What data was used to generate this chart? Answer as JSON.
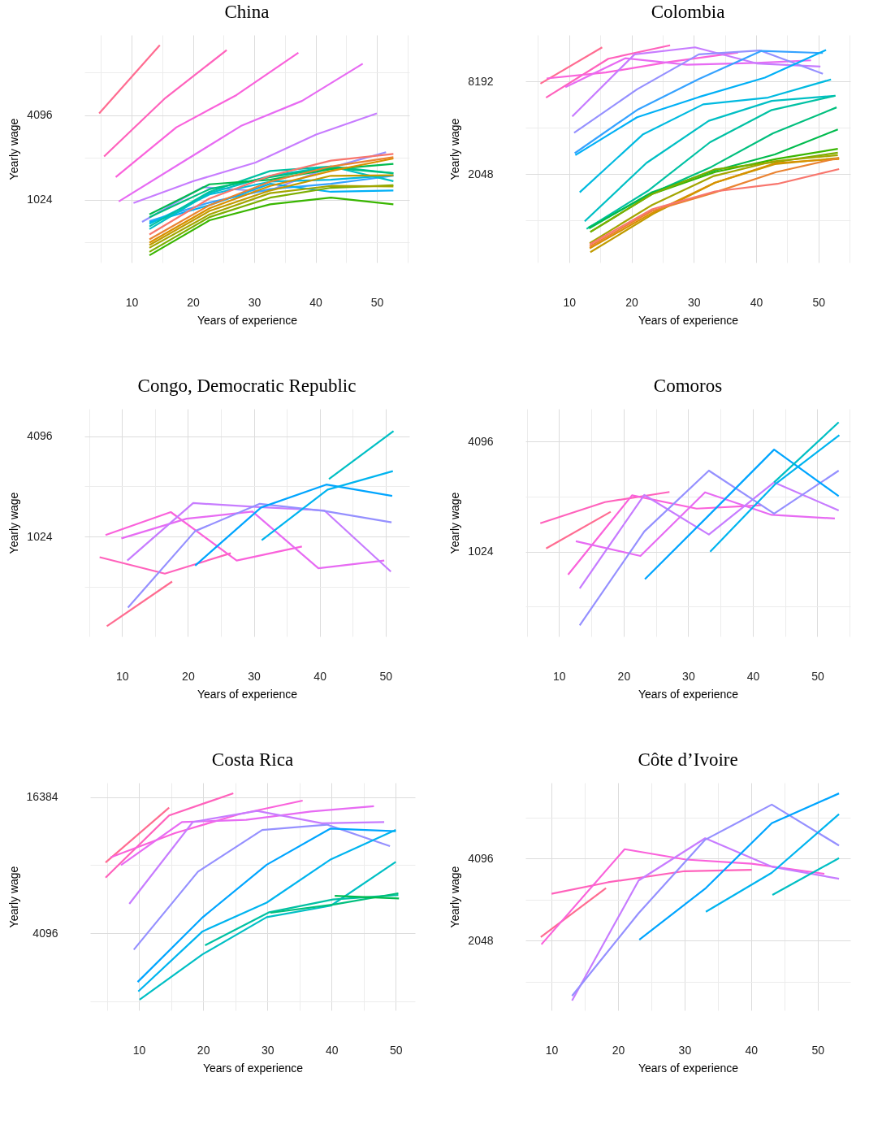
{
  "chart_data": [
    {
      "type": "line",
      "title": "China",
      "xlabel": "Years of experience",
      "ylabel": "Yearly wage",
      "log": "y",
      "grid": true,
      "xlim": [
        2.3,
        55.3
      ],
      "ylim": [
        367,
        15170
      ],
      "xticks": [
        {
          "value": 5,
          "label": null
        },
        10,
        {
          "value": 15,
          "label": null
        },
        20,
        {
          "value": 25,
          "label": null
        },
        30,
        {
          "value": 35,
          "label": null
        },
        40,
        {
          "value": 45,
          "label": null
        },
        50,
        {
          "value": 55,
          "label": null
        }
      ],
      "yticks": [
        {
          "value": 512,
          "label": null
        },
        1024,
        {
          "value": 2048,
          "label": null
        },
        4096,
        {
          "value": 8192,
          "label": null
        }
      ],
      "series": [
        {
          "color": "#ff6c91",
          "x": [
            4.7,
            14.6
          ],
          "values": [
            4210,
            12850
          ]
        },
        {
          "color": "#ff62bc",
          "x": [
            5.5,
            15.5,
            25.5
          ],
          "values": [
            2080,
            5410,
            11840
          ]
        },
        {
          "color": "#fa62db",
          "x": [
            7.4,
            17.3,
            27.1,
            37.2
          ],
          "values": [
            1484,
            3350,
            5680,
            11340
          ]
        },
        {
          "color": "#e76bf3",
          "x": [
            7.9,
            17.9,
            27.8,
            37.8,
            47.7
          ],
          "values": [
            996,
            1850,
            3420,
            5160,
            9480
          ]
        },
        {
          "color": "#c77cff",
          "x": [
            10.3,
            20.1,
            30.2,
            40.1,
            50
          ],
          "values": [
            972,
            1390,
            1884,
            2980,
            4210
          ]
        },
        {
          "color": "#9590ff",
          "x": [
            11.7,
            21.6,
            32,
            41.6,
            51.5
          ],
          "values": [
            714,
            1260,
            1170,
            1690,
            2230
          ]
        },
        {
          "color": "#35a2ff",
          "x": [
            12.9,
            22.7,
            32.6,
            42.5,
            52.7
          ],
          "values": [
            723,
            980,
            1219,
            1330,
            1516
          ]
        },
        {
          "color": "#00b0f6",
          "x": [
            12.9,
            22.7,
            32.6,
            42.5,
            52.7
          ],
          "values": [
            707,
            938,
            1330,
            1167,
            1193
          ]
        },
        {
          "color": "#00bae0",
          "x": [
            12.9,
            22.7,
            32.6,
            42.5,
            52.7
          ],
          "values": [
            691,
            1117,
            1378,
            1420,
            1529
          ]
        },
        {
          "color": "#00bfc4",
          "x": [
            12.9,
            22.7,
            32.6,
            42.5,
            52.7
          ],
          "values": [
            634,
            1142,
            1516,
            1766,
            1389
          ]
        },
        {
          "color": "#00c1a3",
          "x": [
            12.9,
            22.7,
            32.6,
            42.5,
            52.7
          ],
          "values": [
            662,
            1167,
            1640,
            1766,
            1583
          ]
        },
        {
          "color": "#00bf7d",
          "x": [
            12.9,
            22.7,
            32.6,
            42.5,
            52.7
          ],
          "values": [
            771,
            1219,
            1484,
            1728,
            1583
          ]
        },
        {
          "color": "#00bb4e",
          "x": [
            12.9,
            22.7,
            32.6,
            42.5,
            52.7
          ],
          "values": [
            806,
            1319,
            1420,
            1690,
            1844
          ]
        },
        {
          "color": "#39b600",
          "x": [
            12.9,
            22.7,
            32.6,
            42.5,
            52.7
          ],
          "values": [
            413,
            732,
            951,
            1060,
            951
          ]
        },
        {
          "color": "#7cae00",
          "x": [
            12.9,
            22.7,
            32.6,
            42.5,
            52.7
          ],
          "values": [
            437,
            771,
            1060,
            1246,
            1301
          ]
        },
        {
          "color": "#a3a500",
          "x": [
            12.9,
            22.7,
            32.6,
            42.5,
            52.7
          ],
          "values": [
            467,
            806,
            1142,
            1285,
            1273
          ]
        },
        {
          "color": "#c09b00",
          "x": [
            12.9,
            22.7,
            32.6,
            42.5,
            52.7
          ],
          "values": [
            488,
            853,
            1193,
            1516,
            1529
          ]
        },
        {
          "color": "#d89000",
          "x": [
            12.9,
            22.7,
            32.6,
            42.5,
            52.7
          ],
          "values": [
            508,
            891,
            1285,
            1640,
            2012
          ]
        },
        {
          "color": "#ea8331",
          "x": [
            12.9,
            22.7,
            32.6,
            42.5,
            52.7
          ],
          "values": [
            536,
            938,
            1378,
            1766,
            2057
          ]
        },
        {
          "color": "#f8766d",
          "x": [
            12.9,
            22.7,
            32.6,
            42.5,
            52.7
          ],
          "values": [
            580,
            1046,
            1516,
            1944,
            2168
          ]
        }
      ]
    },
    {
      "type": "line",
      "title": "Colombia",
      "xlabel": "Years of experience",
      "ylabel": "Yearly wage",
      "log": "y",
      "grid": true,
      "xlim": [
        3,
        55.1
      ],
      "ylim": [
        545,
        16450
      ],
      "xticks": [
        {
          "value": 5,
          "label": null
        },
        10,
        {
          "value": 15,
          "label": null
        },
        20,
        {
          "value": 25,
          "label": null
        },
        30,
        {
          "value": 35,
          "label": null
        },
        40,
        {
          "value": 45,
          "label": null
        },
        50,
        {
          "value": 55,
          "label": null
        }
      ],
      "yticks": [
        {
          "value": 1024,
          "label": null
        },
        2048,
        {
          "value": 4096,
          "label": null
        },
        8192
      ],
      "series": [
        {
          "color": "#ff6c91",
          "x": [
            5.4,
            15.3
          ],
          "values": [
            7940,
            13660
          ]
        },
        {
          "color": "#ff62bc",
          "x": [
            6.3,
            16.3,
            26.2
          ],
          "values": [
            6440,
            11520,
            14090
          ]
        },
        {
          "color": "#fa62db",
          "x": [
            6.4,
            15.9,
            25.9,
            37.1
          ],
          "values": [
            8580,
            9380,
            10950,
            12640
          ]
        },
        {
          "color": "#e76bf3",
          "x": [
            9.4,
            19,
            28.9,
            40.1,
            48.8
          ],
          "values": [
            7520,
            11610,
            10530,
            10820,
            11250
          ]
        },
        {
          "color": "#c77cff",
          "x": [
            10.5,
            20.5,
            30.2,
            40.1,
            50.3
          ],
          "values": [
            4860,
            12300,
            13660,
            10740,
            10250
          ]
        },
        {
          "color": "#9590ff",
          "x": [
            10.8,
            20.9,
            30.8,
            40.6,
            50.7
          ],
          "values": [
            3800,
            7290,
            12300,
            13040,
            9200
          ]
        },
        {
          "color": "#35a2ff",
          "x": [
            10.9,
            20.9,
            30.8,
            40.8,
            50.7
          ],
          "values": [
            2800,
            5350,
            8510,
            12940,
            12550
          ]
        },
        {
          "color": "#00b0f6",
          "x": [
            11,
            20.9,
            30.8,
            41.4,
            51.2
          ],
          "values": [
            2720,
            4800,
            6490,
            8680,
            13140
          ]
        },
        {
          "color": "#00bae0",
          "x": [
            11.7,
            21.8,
            31.5,
            41.9,
            52
          ],
          "values": [
            1560,
            3700,
            5820,
            6440,
            8450
          ]
        },
        {
          "color": "#00bfc4",
          "x": [
            12.5,
            22.4,
            32.4,
            42.5,
            52.7
          ],
          "values": [
            1010,
            2420,
            4550,
            6130,
            6620
          ]
        },
        {
          "color": "#00c1a3",
          "x": [
            12.8,
            22.8,
            32.6,
            42.5,
            52.7
          ],
          "values": [
            902,
            1610,
            3300,
            5350,
            6620
          ]
        },
        {
          "color": "#00bf7d",
          "x": [
            13.1,
            23,
            32.8,
            42.7,
            52.9
          ],
          "values": [
            919,
            1520,
            2280,
            3770,
            5560
          ]
        },
        {
          "color": "#00bb4e",
          "x": [
            13.2,
            23.3,
            33.2,
            43,
            53.1
          ],
          "values": [
            909,
            1560,
            2150,
            2750,
            4000
          ]
        },
        {
          "color": "#39b600",
          "x": [
            13.4,
            23.3,
            33.4,
            43.2,
            53.1
          ],
          "values": [
            861,
            1520,
            2110,
            2570,
            2990
          ]
        },
        {
          "color": "#7cae00",
          "x": [
            13.4,
            23.3,
            33.4,
            43.2,
            53.1
          ],
          "values": [
            861,
            1520,
            2200,
            2460,
            2820
          ]
        },
        {
          "color": "#a3a500",
          "x": [
            13.3,
            23.3,
            33.2,
            42.7,
            53.1
          ],
          "values": [
            729,
            1290,
            1990,
            2480,
            2720
          ]
        },
        {
          "color": "#c09b00",
          "x": [
            13.4,
            23.5,
            33.4,
            43,
            53.3
          ],
          "values": [
            636,
            1130,
            1800,
            2380,
            2610
          ]
        },
        {
          "color": "#d89000",
          "x": [
            13.3,
            23.4,
            33.4,
            43.2,
            53.3
          ],
          "values": [
            674,
            1150,
            1800,
            2420,
            2570
          ]
        },
        {
          "color": "#ea8331",
          "x": [
            13.3,
            23.3,
            33.2,
            43.2,
            53.3
          ],
          "values": [
            693,
            1180,
            1550,
            2110,
            2610
          ]
        },
        {
          "color": "#f8766d",
          "x": [
            13.3,
            23.3,
            33.4,
            43.4,
            53.3
          ],
          "values": [
            715,
            1210,
            1580,
            1770,
            2210
          ]
        }
      ]
    },
    {
      "type": "line",
      "title": "Congo, Democratic Republic",
      "xlabel": "Years of experience",
      "ylabel": "Yearly wage",
      "log": "y",
      "grid": true,
      "xlim": [
        4.3,
        53.6
      ],
      "ylim": [
        257,
        5990
      ],
      "xticks": [
        {
          "value": 5,
          "label": null
        },
        10,
        {
          "value": 15,
          "label": null
        },
        20,
        {
          "value": 25,
          "label": null
        },
        30,
        {
          "value": 35,
          "label": null
        },
        40,
        {
          "value": 45,
          "label": null
        },
        50
      ],
      "yticks": [
        {
          "value": 512,
          "label": null
        },
        1024,
        {
          "value": 2048,
          "label": null
        },
        4096
      ],
      "series": [
        {
          "color": "#ff6c91",
          "x": [
            7.7,
            17.6
          ],
          "values": [
            296,
            549
          ]
        },
        {
          "color": "#ff62bc",
          "x": [
            6.6,
            16.5,
            26.5
          ],
          "values": [
            769,
            613,
            813
          ]
        },
        {
          "color": "#fa62db",
          "x": [
            7.5,
            17.4,
            27.4,
            37.3
          ],
          "values": [
            1046,
            1436,
            735,
            892
          ]
        },
        {
          "color": "#e76bf3",
          "x": [
            9.9,
            19.8,
            29.8,
            39.8,
            49.8
          ],
          "values": [
            998,
            1310,
            1446,
            660,
            735
          ]
        },
        {
          "color": "#c77cff",
          "x": [
            10.8,
            20.8,
            30.8,
            40.7,
            50.8
          ],
          "values": [
            735,
            1626,
            1540,
            1469,
            630
          ]
        },
        {
          "color": "#9590ff",
          "x": [
            10.9,
            21.1,
            30.9,
            40.7,
            50.9
          ],
          "values": [
            383,
            1104,
            1610,
            1458,
            1246
          ]
        },
        {
          "color": "#00a5ff",
          "x": [
            21.1,
            31.1,
            41,
            51
          ],
          "values": [
            685,
            1530,
            2100,
            1797
          ]
        },
        {
          "color": "#00b4ef",
          "x": [
            31.2,
            41.2,
            51.1
          ],
          "values": [
            974,
            1960,
            2530
          ]
        },
        {
          "color": "#00bfc4",
          "x": [
            41.4,
            51.2
          ],
          "values": [
            2270,
            4400
          ]
        }
      ]
    },
    {
      "type": "line",
      "title": "Comoros",
      "xlabel": "Years of experience",
      "ylabel": "Yearly wage",
      "log": "y",
      "grid": true,
      "xlim": [
        4.8,
        55.1
      ],
      "ylim": [
        352,
        6180
      ],
      "xticks": [
        {
          "value": 5,
          "label": null
        },
        10,
        {
          "value": 15,
          "label": null
        },
        20,
        {
          "value": 25,
          "label": null
        },
        30,
        {
          "value": 35,
          "label": null
        },
        40,
        {
          "value": 45,
          "label": null
        },
        50,
        {
          "value": 55,
          "label": null
        }
      ],
      "yticks": [
        {
          "value": 512,
          "label": null
        },
        1024,
        {
          "value": 2048,
          "label": null
        },
        4096
      ],
      "series": [
        {
          "color": "#ff6c91",
          "x": [
            8,
            18
          ],
          "values": [
            1065,
            1692
          ]
        },
        {
          "color": "#ff62bc",
          "x": [
            7.1,
            17.1,
            27.1
          ],
          "values": [
            1464,
            1910,
            2170
          ]
        },
        {
          "color": "#fa62db",
          "x": [
            11.4,
            21.3,
            31.3,
            41.3
          ],
          "values": [
            766,
            2080,
            1760,
            1834
          ]
        },
        {
          "color": "#e76bf3",
          "x": [
            12.6,
            22.6,
            32.6,
            42.9,
            52.7
          ],
          "values": [
            1167,
            969,
            2160,
            1626,
            1555
          ]
        },
        {
          "color": "#c77cff",
          "x": [
            13.2,
            23.2,
            33.2,
            43.3,
            53.3
          ],
          "values": [
            645,
            2090,
            1270,
            2450,
            1720
          ]
        },
        {
          "color": "#9590ff",
          "x": [
            13.2,
            23.2,
            33.2,
            43.3,
            53.3
          ],
          "values": [
            405,
            1320,
            2840,
            1654,
            2840
          ]
        },
        {
          "color": "#00a5ff",
          "x": [
            23.3,
            33.3,
            43.3,
            53.3
          ],
          "values": [
            724,
            1632,
            3700,
            2060
          ]
        },
        {
          "color": "#00b4ef",
          "x": [
            33.4,
            43.4,
            53.4
          ],
          "values": [
            1024,
            2380,
            4440
          ]
        },
        {
          "color": "#00bfc4",
          "x": [
            43.3,
            53.3
          ],
          "values": [
            2450,
            5220
          ]
        }
      ]
    },
    {
      "type": "line",
      "title": "Costa Rica",
      "xlabel": "Years of experience",
      "ylabel": "Yearly wage",
      "log": "y",
      "grid": true,
      "xlim": [
        2.4,
        53
      ],
      "ylim": [
        1865,
        18980
      ],
      "xticks": [
        {
          "value": 5,
          "label": null
        },
        10,
        {
          "value": 15,
          "label": null
        },
        20,
        {
          "value": 25,
          "label": null
        },
        30,
        {
          "value": 35,
          "label": null
        },
        40,
        {
          "value": 45,
          "label": null
        },
        50
      ],
      "yticks": [
        {
          "value": 2048,
          "label": null
        },
        4096,
        {
          "value": 8192,
          "label": null
        },
        16384
      ],
      "series": [
        {
          "color": "#ff6c91",
          "x": [
            4.8,
            14.7
          ],
          "values": [
            8420,
            14720
          ]
        },
        {
          "color": "#ff62bc",
          "x": [
            4.8,
            14.7,
            24.7
          ],
          "values": [
            7210,
            13600,
            17040
          ]
        },
        {
          "color": "#fa62db",
          "x": [
            5.6,
            15.6,
            25.6,
            35.5
          ],
          "values": [
            8880,
            11360,
            13770,
            15820
          ]
        },
        {
          "color": "#e76bf3",
          "x": [
            7.2,
            16.7,
            26.7,
            36.8,
            46.6
          ],
          "values": [
            8190,
            12720,
            13000,
            14160,
            14930
          ]
        },
        {
          "color": "#c77cff",
          "x": [
            8.5,
            18.4,
            28.4,
            38.5,
            48.2
          ],
          "values": [
            5520,
            12720,
            14240,
            12550,
            12720
          ]
        },
        {
          "color": "#9590ff",
          "x": [
            9.2,
            19.2,
            29.2,
            39.3,
            49.1
          ],
          "values": [
            3460,
            7670,
            11730,
            12380,
            9950
          ]
        },
        {
          "color": "#00a5ff",
          "x": [
            9.8,
            19.8,
            29.9,
            39.8,
            50
          ],
          "values": [
            2490,
            4780,
            8230,
            11890,
            11590
          ]
        },
        {
          "color": "#00b4ef",
          "x": [
            9.9,
            19.9,
            29.9,
            39.9,
            50
          ],
          "values": [
            2260,
            4170,
            5590,
            8700,
            11730
          ]
        },
        {
          "color": "#00bfc4",
          "x": [
            10.1,
            19.9,
            29.9,
            39.9,
            50
          ],
          "values": [
            2080,
            3300,
            4820,
            5420,
            8470
          ]
        },
        {
          "color": "#00c1a3",
          "x": [
            20.3,
            30.3,
            40.2,
            50.4
          ],
          "values": [
            3620,
            5070,
            5770,
            6040
          ]
        },
        {
          "color": "#00bf7d",
          "x": [
            30.5,
            40.5,
            50.4
          ],
          "values": [
            5040,
            5490,
            6150
          ]
        },
        {
          "color": "#00bb4e",
          "x": [
            40.5,
            50.5
          ],
          "values": [
            5990,
            5830
          ]
        }
      ]
    },
    {
      "type": "line",
      "title": "Côte d’Ivoire",
      "xlabel": "Years of experience",
      "ylabel": "Yearly wage",
      "log": "y",
      "grid": true,
      "xlim": [
        6.1,
        54.9
      ],
      "ylim": [
        1135,
        7770
      ],
      "xticks": [
        10,
        {
          "value": 15,
          "label": null
        },
        20,
        {
          "value": 25,
          "label": null
        },
        30,
        {
          "value": 35,
          "label": null
        },
        40,
        {
          "value": 45,
          "label": null
        },
        50
      ],
      "yticks": [
        {
          "value": 1448,
          "label": null
        },
        2048,
        {
          "value": 2896,
          "label": null
        },
        4096,
        {
          "value": 5793,
          "label": null
        }
      ],
      "series": [
        {
          "color": "#ff6c91",
          "x": [
            8.4,
            18.2
          ],
          "values": [
            2107,
            3190
          ]
        },
        {
          "color": "#ff62bc",
          "x": [
            10,
            18.5,
            30,
            40.1
          ],
          "values": [
            3040,
            3350,
            3680,
            3720
          ]
        },
        {
          "color": "#fa62db",
          "x": [
            8.5,
            21,
            30.2,
            40.1,
            51
          ],
          "values": [
            1982,
            4430,
            4060,
            3920,
            3600
          ]
        },
        {
          "color": "#c77cff",
          "x": [
            13.1,
            23.1,
            33.1,
            43.1,
            53.2
          ],
          "values": [
            1232,
            3400,
            4860,
            3820,
            3450
          ]
        },
        {
          "color": "#9590ff",
          "x": [
            13.1,
            23.1,
            33.1,
            43.1,
            53.2
          ],
          "values": [
            1282,
            2580,
            4800,
            6460,
            4570
          ]
        },
        {
          "color": "#00a5ff",
          "x": [
            23.2,
            33.2,
            43.1,
            53.2
          ],
          "values": [
            2060,
            3190,
            5520,
            7100
          ]
        },
        {
          "color": "#00b4ef",
          "x": [
            33.2,
            43.1,
            53.2
          ],
          "values": [
            2610,
            3630,
            5960
          ]
        },
        {
          "color": "#00bfc4",
          "x": [
            43.2,
            53.2
          ],
          "values": [
            3010,
            4110
          ]
        }
      ]
    }
  ]
}
